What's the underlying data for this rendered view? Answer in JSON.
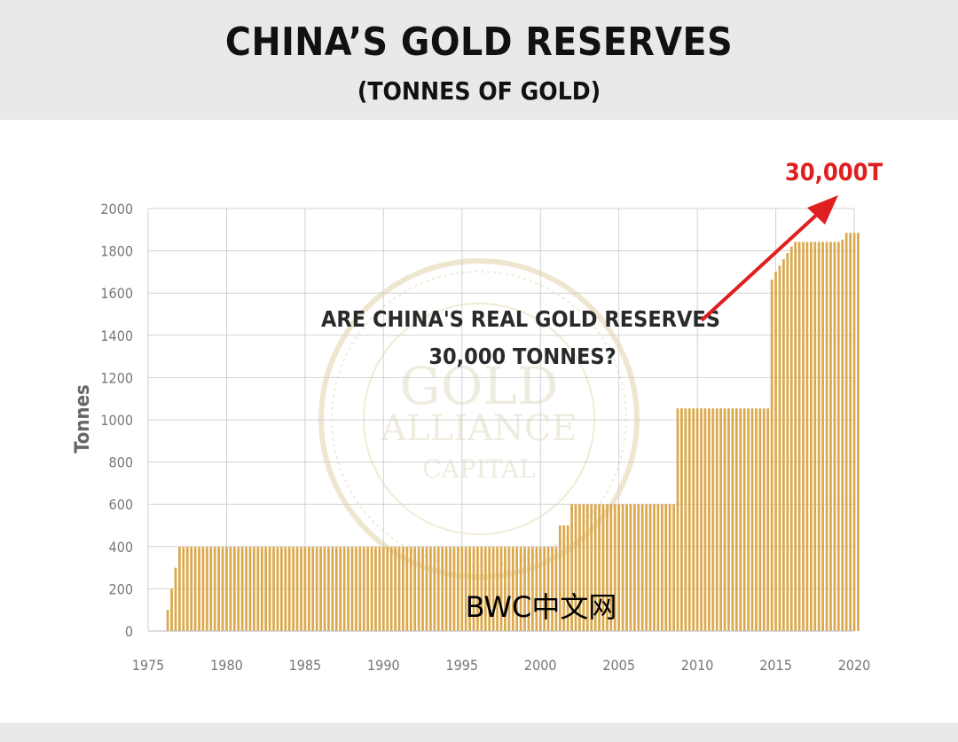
{
  "header": {
    "title": "CHINA’S GOLD RESERVES",
    "subtitle": "(TONNES OF GOLD)"
  },
  "chart_data": {
    "type": "bar",
    "title": "CHINA’S GOLD RESERVES",
    "subtitle": "(TONNES OF GOLD)",
    "xlabel": "",
    "ylabel": "Tonnes",
    "xlim": [
      1975,
      2020
    ],
    "ylim": [
      0,
      2000
    ],
    "x_ticks": [
      1975,
      1980,
      1985,
      1990,
      1995,
      2000,
      2005,
      2010,
      2015,
      2020
    ],
    "y_ticks": [
      0,
      200,
      400,
      600,
      800,
      1000,
      1200,
      1400,
      1600,
      1800,
      2000
    ],
    "grid": true,
    "bar_interval": 0.25,
    "x_start": 1976.25,
    "values": [
      100,
      200,
      300,
      398,
      398,
      398,
      398,
      398,
      398,
      398,
      398,
      398,
      398,
      398,
      398,
      398,
      398,
      398,
      398,
      398,
      398,
      398,
      398,
      398,
      398,
      398,
      398,
      398,
      398,
      398,
      398,
      398,
      398,
      398,
      398,
      398,
      398,
      398,
      398,
      398,
      398,
      398,
      398,
      398,
      398,
      398,
      398,
      398,
      398,
      398,
      398,
      398,
      398,
      398,
      398,
      398,
      398,
      398,
      398,
      398,
      398,
      398,
      398,
      398,
      398,
      398,
      398,
      398,
      398,
      398,
      398,
      398,
      398,
      398,
      398,
      398,
      398,
      398,
      398,
      398,
      398,
      398,
      398,
      398,
      398,
      398,
      398,
      398,
      398,
      398,
      398,
      398,
      398,
      398,
      398,
      398,
      398,
      398,
      398,
      398,
      500,
      500,
      500,
      600,
      600,
      600,
      600,
      600,
      600,
      600,
      600,
      600,
      600,
      600,
      600,
      600,
      600,
      600,
      600,
      600,
      600,
      600,
      600,
      600,
      600,
      600,
      600,
      600,
      600,
      600,
      1054,
      1054,
      1054,
      1054,
      1054,
      1054,
      1054,
      1054,
      1054,
      1054,
      1054,
      1054,
      1054,
      1054,
      1054,
      1054,
      1054,
      1054,
      1054,
      1054,
      1054,
      1054,
      1054,
      1054,
      1663,
      1700,
      1730,
      1760,
      1790,
      1820,
      1842,
      1842,
      1842,
      1842,
      1842,
      1842,
      1842,
      1842,
      1842,
      1842,
      1842,
      1842,
      1852,
      1885,
      1885,
      1885,
      1885
    ],
    "bar_color": "#dba94c",
    "annotations": {
      "question_line1": "ARE CHINA'S REAL GOLD RESERVES",
      "question_line2": "30,000 TONNES?",
      "callout": "30,000T",
      "callout_color": "#e02020"
    },
    "watermark_text": "BWC中文网",
    "logo": {
      "line1": "GOLD",
      "line2": "ALLIANCE",
      "line3": "CAPITAL"
    }
  }
}
